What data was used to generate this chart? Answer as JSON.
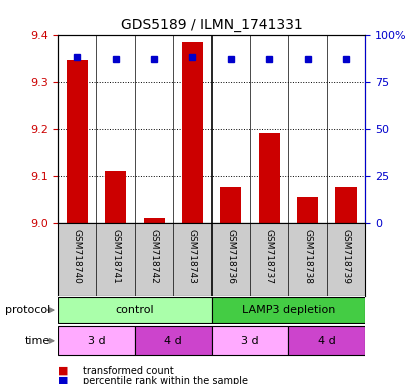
{
  "title": "GDS5189 / ILMN_1741331",
  "samples": [
    "GSM718740",
    "GSM718741",
    "GSM718742",
    "GSM718743",
    "GSM718736",
    "GSM718737",
    "GSM718738",
    "GSM718739"
  ],
  "transformed_counts": [
    9.345,
    9.11,
    9.01,
    9.385,
    9.075,
    9.19,
    9.055,
    9.075
  ],
  "percentile_ranks": [
    88,
    87,
    87,
    88,
    87,
    87,
    87,
    87
  ],
  "ylim_left": [
    9.0,
    9.4
  ],
  "ylim_right": [
    0,
    100
  ],
  "yticks_left": [
    9.0,
    9.1,
    9.2,
    9.3,
    9.4
  ],
  "yticks_right": [
    0,
    25,
    50,
    75,
    100
  ],
  "yticklabels_right": [
    "0",
    "25",
    "50",
    "75",
    "100%"
  ],
  "bar_color": "#cc0000",
  "dot_color": "#0000cc",
  "bg_color": "#ffffff",
  "sample_bg_color": "#cccccc",
  "tick_label_color_left": "#cc0000",
  "tick_label_color_right": "#0000cc",
  "protocol_color_control": "#aaffaa",
  "protocol_color_lamp3": "#44cc44",
  "time_color_3d": "#ffaaff",
  "time_color_4d": "#cc44cc"
}
